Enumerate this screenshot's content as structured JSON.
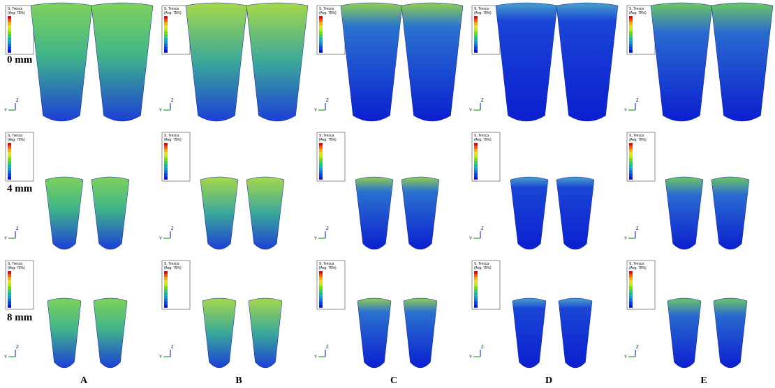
{
  "rows": [
    {
      "label": "0 mm"
    },
    {
      "label": "4 mm"
    },
    {
      "label": "8 mm"
    }
  ],
  "columns": [
    {
      "label": "A"
    },
    {
      "label": "B"
    },
    {
      "label": "C"
    },
    {
      "label": "D"
    },
    {
      "label": "E"
    }
  ],
  "legend": {
    "title": "S, Tresca",
    "average": "(Avg: 75%)"
  },
  "triad": {
    "z": "Z",
    "y": "Y"
  }
}
